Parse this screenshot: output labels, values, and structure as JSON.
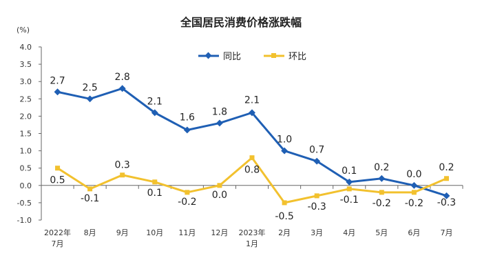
{
  "chart_data": {
    "type": "line",
    "title": "全国居民消费价格涨跌幅",
    "unit_label": "(%)",
    "categories": [
      [
        "2022年",
        "7月"
      ],
      [
        "8月"
      ],
      [
        "9月"
      ],
      [
        "10月"
      ],
      [
        "11月"
      ],
      [
        "12月"
      ],
      [
        "2023年",
        "1月"
      ],
      [
        "2月"
      ],
      [
        "3月"
      ],
      [
        "4月"
      ],
      [
        "5月"
      ],
      [
        "6月"
      ],
      [
        "7月"
      ]
    ],
    "yticks": [
      "4.0",
      "3.5",
      "3.0",
      "2.5",
      "2.0",
      "1.5",
      "1.0",
      "0.5",
      "0.0",
      "-0.5",
      "-1.0"
    ],
    "ylim": [
      -1.0,
      4.0
    ],
    "grid": false,
    "legend_position": "top-center",
    "series": [
      {
        "name": "同比",
        "color": "#1f5fb4",
        "marker": "diamond",
        "values": [
          2.7,
          2.5,
          2.8,
          2.1,
          1.6,
          1.8,
          2.1,
          1.0,
          0.7,
          0.1,
          0.2,
          0.0,
          -0.3
        ],
        "labels": [
          "2.7",
          "2.5",
          "2.8",
          "2.1",
          "1.6",
          "1.8",
          "2.1",
          "1.0",
          "0.7",
          "0.1",
          "0.2",
          "0.0",
          "-0.3"
        ]
      },
      {
        "name": "环比",
        "color": "#f2c12e",
        "marker": "square",
        "values": [
          0.5,
          -0.1,
          0.3,
          0.1,
          -0.2,
          0.0,
          0.8,
          -0.5,
          -0.3,
          -0.1,
          -0.2,
          -0.2,
          0.2
        ],
        "labels": [
          "0.5",
          "-0.1",
          "0.3",
          "0.1",
          "-0.2",
          "0.0",
          "0.8",
          "-0.5",
          "-0.3",
          "-0.1",
          "-0.2",
          "-0.2",
          "0.2"
        ]
      }
    ]
  }
}
